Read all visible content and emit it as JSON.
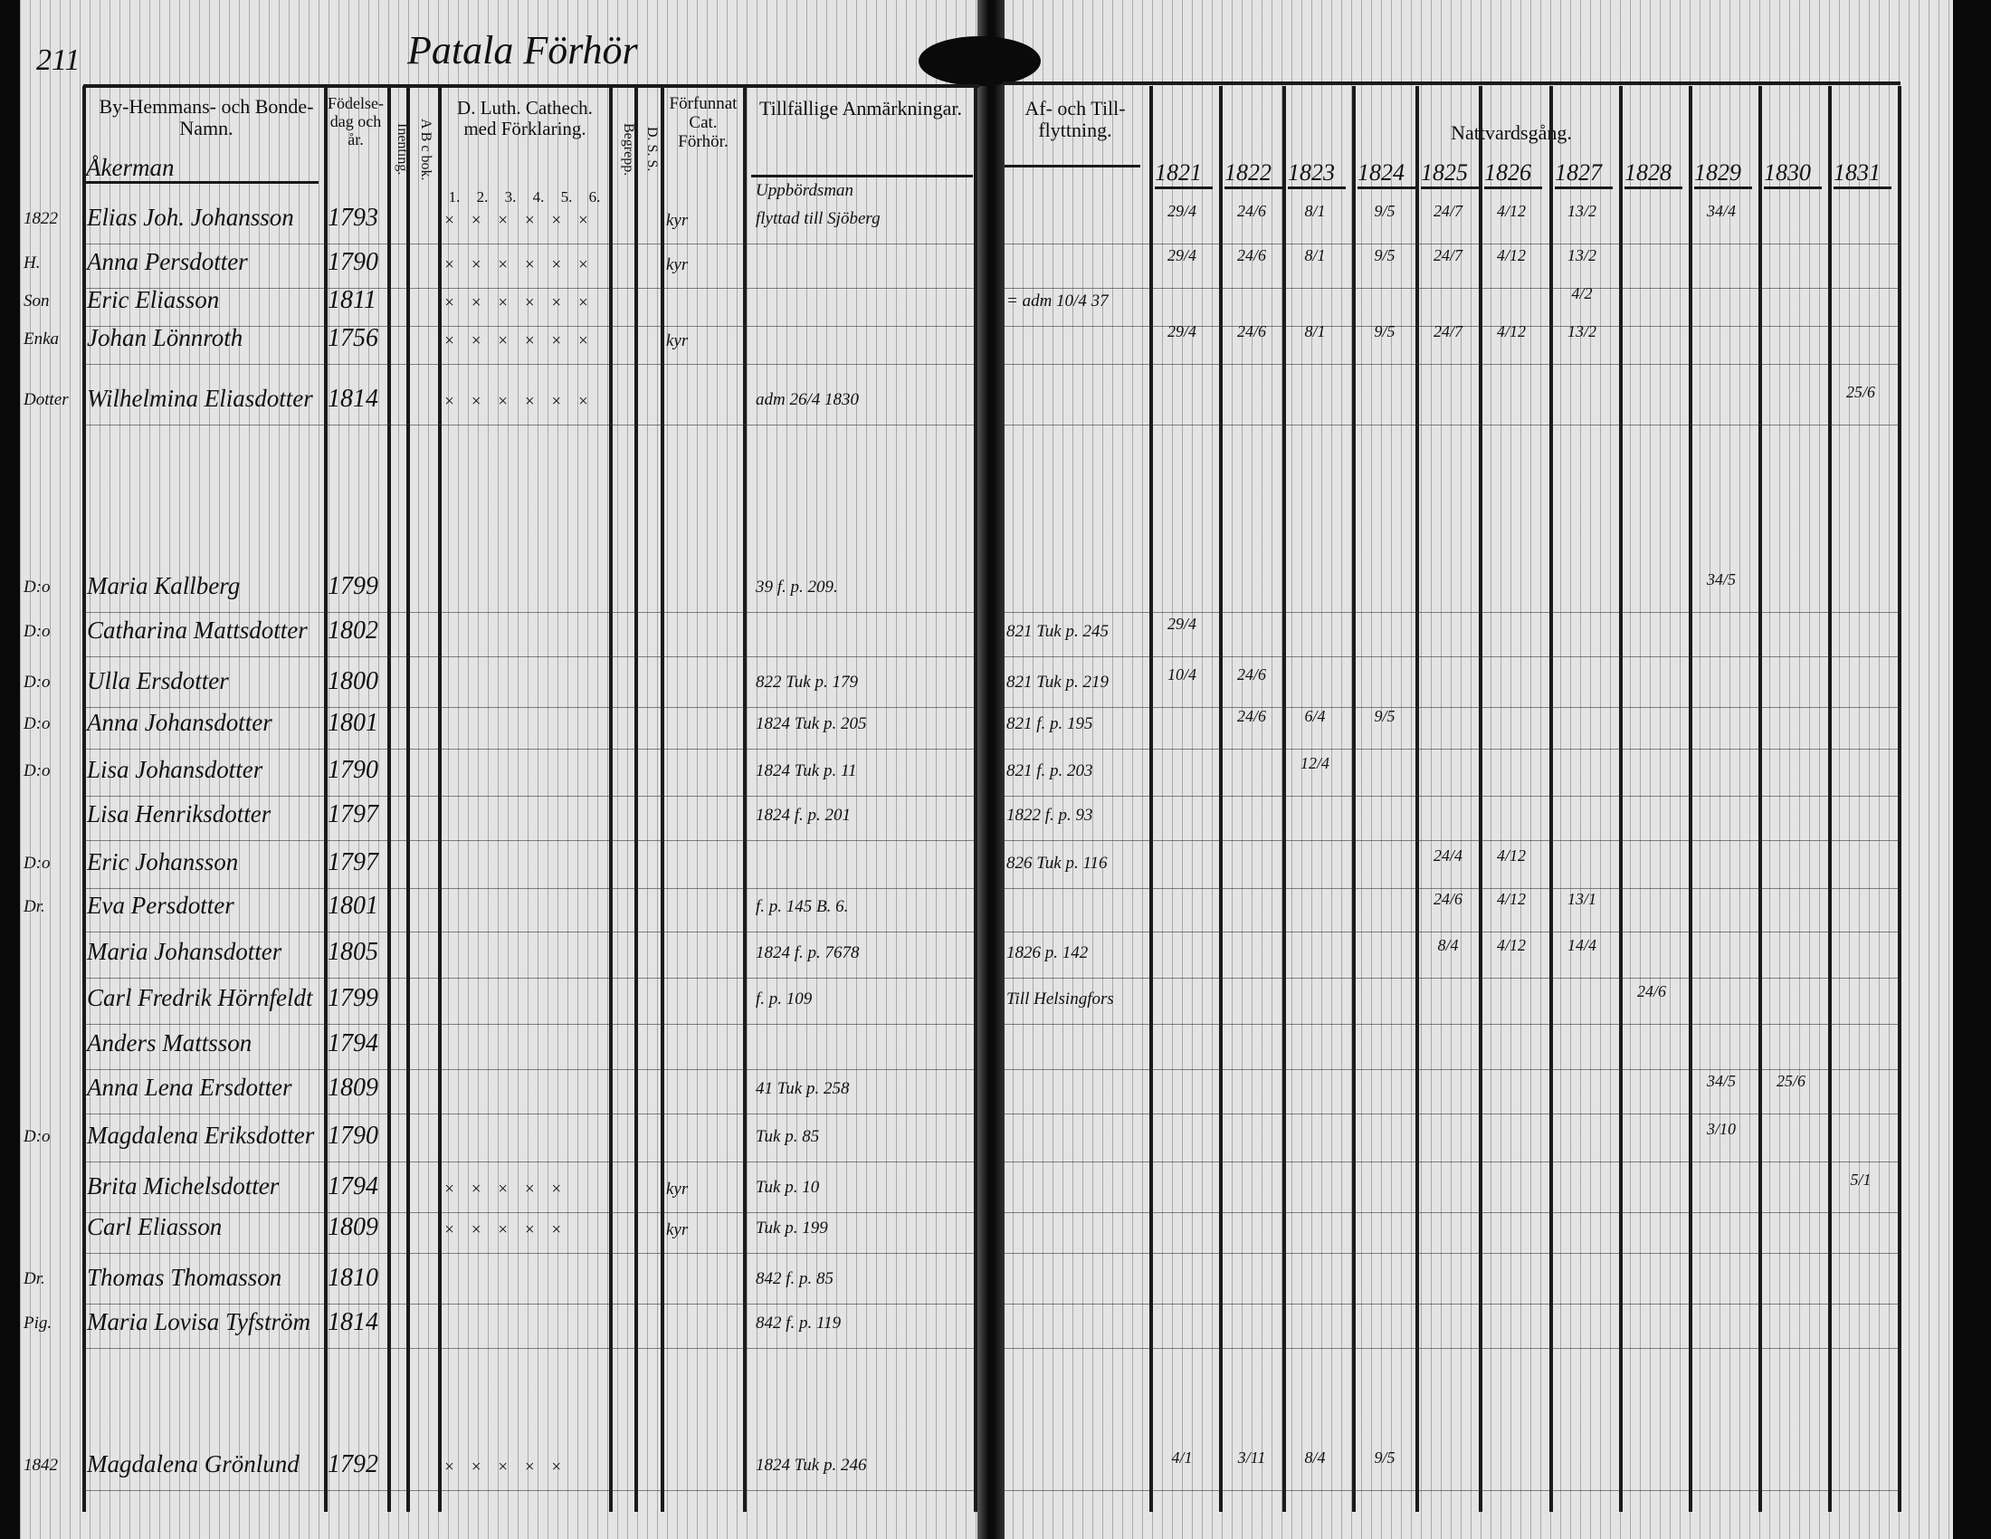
{
  "page_number": "211",
  "heading": "Patala Förhör",
  "columns": {
    "name": "By-Hemmans- och Bonde-Namn.",
    "birth": "Födelse-dag och år.",
    "inenting": "Inenting.",
    "abc_bok": "A B c bok.",
    "catechism": "D. Luth. Cathech. med Förklaring.",
    "catechism_parts": [
      "1.",
      "2.",
      "3.",
      "4.",
      "5.",
      "6."
    ],
    "begrepp": "Begrepp.",
    "dss": "D. S. S.",
    "forfunnat": "Förfunnat Cat. Förhör.",
    "remarks": "Tillfällige Anmärkningar.",
    "moves": "Af- och Till-flyttning.",
    "communion": "Nattvardsgång."
  },
  "communion_years": [
    "1821",
    "1822",
    "1823",
    "1824",
    "1825",
    "1826",
    "1827",
    "1828",
    "1829",
    "1830",
    "1831"
  ],
  "household_header": "Åkerman",
  "household_header_right": "Uppbördsman",
  "rows": [
    {
      "prefix": "1822",
      "name": "Elias Joh. Johansson",
      "birth": "1793",
      "knowledge": "× × × × × ×",
      "forfunnat": "kyr",
      "remarks": "flyttad till Sjöberg",
      "moves": "",
      "communion": [
        "29/4",
        "24/6",
        "8/1",
        "9/5",
        "24/7",
        "4/12",
        "13/2",
        "",
        "34/4",
        "",
        ""
      ]
    },
    {
      "prefix": "H.",
      "name": "Anna Persdotter",
      "birth": "1790",
      "knowledge": "× × × × × ×",
      "forfunnat": "kyr",
      "remarks": "",
      "moves": "",
      "communion": [
        "29/4",
        "24/6",
        "8/1",
        "9/5",
        "24/7",
        "4/12",
        "13/2",
        "",
        "",
        "",
        ""
      ]
    },
    {
      "prefix": "Son",
      "name": "Eric Eliasson",
      "birth": "1811",
      "knowledge": "× × × × × ×",
      "forfunnat": "",
      "remarks": "",
      "moves": "= adm 10/4 37",
      "communion": [
        "",
        "",
        "",
        "",
        "",
        "",
        "4/2",
        "",
        "",
        "",
        ""
      ]
    },
    {
      "prefix": "Enka",
      "name": "Johan Lönnroth",
      "birth": "1756",
      "knowledge": "× × × × × ×",
      "forfunnat": "kyr",
      "remarks": "",
      "moves": "",
      "communion": [
        "29/4",
        "24/6",
        "8/1",
        "9/5",
        "24/7",
        "4/12",
        "13/2",
        "",
        "",
        "",
        ""
      ]
    },
    {
      "prefix": "Dotter",
      "name": "Wilhelmina Eliasdotter",
      "birth": "1814",
      "knowledge": "× × × × × ×",
      "forfunnat": "",
      "remarks": "adm 26/4 1830",
      "moves": "",
      "communion": [
        "",
        "",
        "",
        "",
        "",
        "",
        "",
        "",
        "",
        "",
        "25/6"
      ]
    },
    {
      "prefix": "D:o",
      "name": "Maria Kallberg",
      "birth": "1799",
      "knowledge": "",
      "forfunnat": "",
      "remarks": "39 f. p. 209.",
      "moves": "",
      "communion": [
        "",
        "",
        "",
        "",
        "",
        "",
        "",
        "",
        "34/5",
        "",
        ""
      ]
    },
    {
      "prefix": "D:o",
      "name": "Catharina Mattsdotter",
      "birth": "1802",
      "knowledge": "",
      "forfunnat": "",
      "remarks": "",
      "moves": "821 Tuk p. 245",
      "communion": [
        "29/4",
        "",
        "",
        "",
        "",
        "",
        "",
        "",
        "",
        "",
        ""
      ]
    },
    {
      "prefix": "D:o",
      "name": "Ulla Ersdotter",
      "birth": "1800",
      "knowledge": "",
      "forfunnat": "",
      "remarks": "822 Tuk p. 179",
      "moves": "821 Tuk p. 219",
      "communion": [
        "10/4",
        "24/6",
        "",
        "",
        "",
        "",
        "",
        "",
        "",
        "",
        ""
      ]
    },
    {
      "prefix": "D:o",
      "name": "Anna Johansdotter",
      "birth": "1801",
      "knowledge": "",
      "forfunnat": "",
      "remarks": "1824 Tuk p. 205",
      "moves": "821 f. p. 195",
      "communion": [
        "",
        "24/6",
        "6/4",
        "9/5",
        "",
        "",
        "",
        "",
        "",
        "",
        ""
      ]
    },
    {
      "prefix": "D:o",
      "name": "Lisa Johansdotter",
      "birth": "1790",
      "knowledge": "",
      "forfunnat": "",
      "remarks": "1824 Tuk p. 11",
      "moves": "821 f. p. 203",
      "communion": [
        "",
        "",
        "12/4",
        "",
        "",
        "",
        "",
        "",
        "",
        "",
        ""
      ]
    },
    {
      "prefix": "",
      "name": "Lisa Henriksdotter",
      "birth": "1797",
      "knowledge": "",
      "forfunnat": "",
      "remarks": "1824 f. p. 201",
      "moves": "1822 f. p. 93",
      "communion": [
        "",
        "",
        "",
        "",
        "",
        "",
        "",
        "",
        "",
        "",
        ""
      ]
    },
    {
      "prefix": "D:o",
      "name": "Eric Johansson",
      "birth": "1797",
      "knowledge": "",
      "forfunnat": "",
      "remarks": "",
      "moves": "826 Tuk p. 116",
      "communion": [
        "",
        "",
        "",
        "",
        "24/4",
        "4/12",
        "",
        "",
        "",
        "",
        ""
      ]
    },
    {
      "prefix": "Dr.",
      "name": "Eva Persdotter",
      "birth": "1801",
      "knowledge": "",
      "forfunnat": "",
      "remarks": "f. p. 145 B. 6.",
      "moves": "",
      "communion": [
        "",
        "",
        "",
        "",
        "24/6",
        "4/12",
        "13/1",
        "",
        "",
        "",
        ""
      ]
    },
    {
      "prefix": "",
      "name": "Maria Johansdotter",
      "birth": "1805",
      "knowledge": "",
      "forfunnat": "",
      "remarks": "1824 f. p. 7678",
      "moves": "1826 p. 142",
      "communion": [
        "",
        "",
        "",
        "",
        "8/4",
        "4/12",
        "14/4",
        "",
        "",
        "",
        ""
      ]
    },
    {
      "prefix": "",
      "name": "Carl Fredrik Hörnfeldt",
      "birth": "1799",
      "knowledge": "",
      "forfunnat": "",
      "remarks": "f. p. 109",
      "moves": "Till Helsingfors",
      "communion": [
        "",
        "",
        "",
        "",
        "",
        "",
        "",
        "24/6",
        "",
        "",
        ""
      ]
    },
    {
      "prefix": "",
      "name": "Anders Mattsson",
      "birth": "1794",
      "knowledge": "",
      "forfunnat": "",
      "remarks": "",
      "moves": "",
      "communion": [
        "",
        "",
        "",
        "",
        "",
        "",
        "",
        "",
        "",
        "",
        ""
      ]
    },
    {
      "prefix": "",
      "name": "Anna Lena Ersdotter",
      "birth": "1809",
      "knowledge": "",
      "forfunnat": "",
      "remarks": "41 Tuk p. 258",
      "moves": "",
      "communion": [
        "",
        "",
        "",
        "",
        "",
        "",
        "",
        "",
        "34/5",
        "25/6",
        ""
      ]
    },
    {
      "prefix": "D:o",
      "name": "Magdalena Eriksdotter",
      "birth": "1790",
      "knowledge": "",
      "forfunnat": "",
      "remarks": "Tuk p. 85",
      "moves": "",
      "communion": [
        "",
        "",
        "",
        "",
        "",
        "",
        "",
        "",
        "3/10",
        "",
        ""
      ]
    },
    {
      "prefix": "",
      "name": "Brita Michelsdotter",
      "birth": "1794",
      "knowledge": "× × × × ×",
      "forfunnat": "kyr",
      "remarks": "Tuk p. 10",
      "moves": "",
      "communion": [
        "",
        "",
        "",
        "",
        "",
        "",
        "",
        "",
        "",
        "",
        "5/1"
      ]
    },
    {
      "prefix": "",
      "name": "Carl Eliasson",
      "birth": "1809",
      "knowledge": "× × × × ×",
      "forfunnat": "kyr",
      "remarks": "Tuk p. 199",
      "moves": "",
      "communion": [
        "",
        "",
        "",
        "",
        "",
        "",
        "",
        "",
        "",
        "",
        ""
      ]
    },
    {
      "prefix": "Dr.",
      "name": "Thomas Thomasson",
      "birth": "1810",
      "knowledge": "",
      "forfunnat": "",
      "remarks": "842 f. p. 85",
      "moves": "",
      "communion": [
        "",
        "",
        "",
        "",
        "",
        "",
        "",
        "",
        "",
        "",
        ""
      ]
    },
    {
      "prefix": "Pig.",
      "name": "Maria Lovisa Tyfström",
      "birth": "1814",
      "knowledge": "",
      "forfunnat": "",
      "remarks": "842 f. p. 119",
      "moves": "",
      "communion": [
        "",
        "",
        "",
        "",
        "",
        "",
        "",
        "",
        "",
        "",
        ""
      ]
    },
    {
      "prefix": "1842",
      "name": "Magdalena Grönlund",
      "birth": "1792",
      "knowledge": "× × × × ×",
      "forfunnat": "",
      "remarks": "1824 Tuk p. 246",
      "moves": "",
      "communion": [
        "4/1",
        "3/11",
        "8/4",
        "9/5",
        "",
        "",
        "",
        "",
        "",
        "",
        ""
      ]
    }
  ]
}
